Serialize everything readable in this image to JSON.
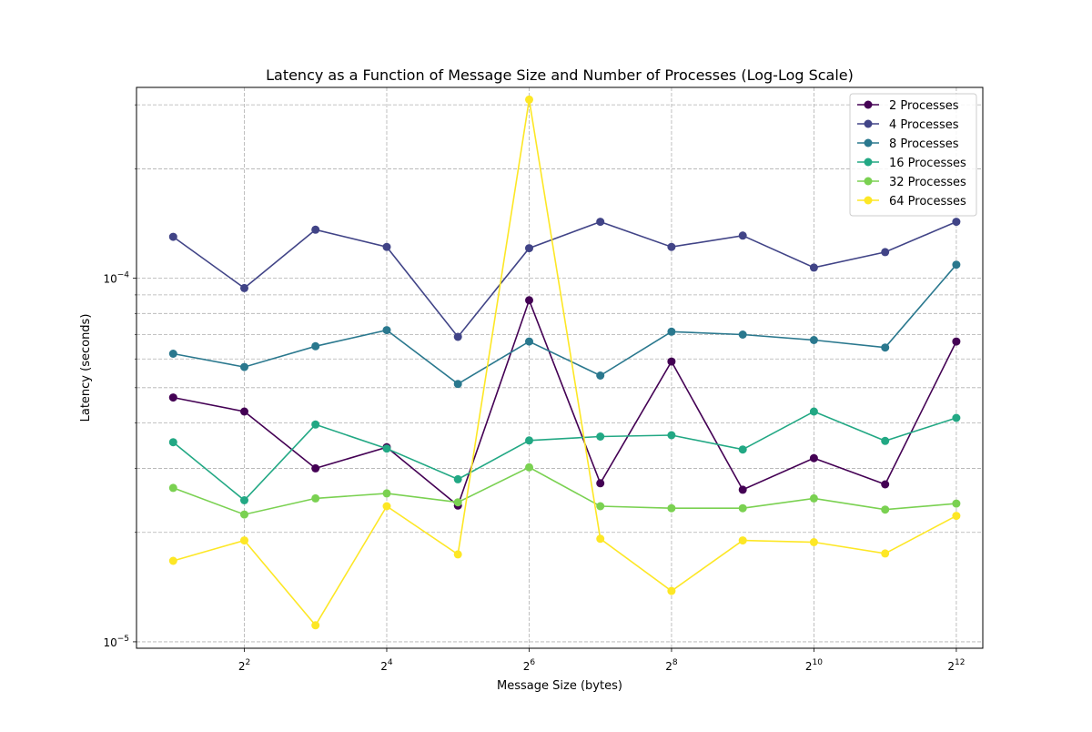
{
  "chart_data": {
    "type": "line",
    "title": "Latency as a Function of Message Size and Number of Processes (Log-Log Scale)",
    "xlabel": "Message Size (bytes)",
    "ylabel": "Latency (seconds)",
    "x_scale": "log2",
    "y_scale": "log10",
    "xlim": [
      1.4,
      5300
    ],
    "ylim": [
      9.6e-06,
      0.000335
    ],
    "grid": true,
    "legend_location": "upper right",
    "marker": "circle",
    "x_ticks": [
      {
        "value": 4,
        "base": "2",
        "exp": "2"
      },
      {
        "value": 16,
        "base": "2",
        "exp": "4"
      },
      {
        "value": 64,
        "base": "2",
        "exp": "6"
      },
      {
        "value": 256,
        "base": "2",
        "exp": "8"
      },
      {
        "value": 1024,
        "base": "2",
        "exp": "10"
      },
      {
        "value": 4096,
        "base": "2",
        "exp": "12"
      }
    ],
    "y_ticks": [
      {
        "value": 1e-05,
        "base": "10",
        "exp": "−5"
      },
      {
        "value": 0.0001,
        "base": "10",
        "exp": "−4"
      }
    ],
    "y_minor_ticks": [
      2e-05,
      3e-05,
      4e-05,
      5e-05,
      6e-05,
      7e-05,
      8e-05,
      9e-05,
      0.0002,
      0.0003
    ],
    "x": [
      2,
      4,
      8,
      16,
      32,
      64,
      128,
      256,
      512,
      1024,
      2048,
      4096
    ],
    "series": [
      {
        "name": "2 Processes",
        "color": "#440154",
        "values": [
          4.7e-05,
          4.3e-05,
          3e-05,
          3.43e-05,
          2.37e-05,
          8.7e-05,
          2.73e-05,
          5.9e-05,
          2.62e-05,
          3.2e-05,
          2.71e-05,
          6.7e-05
        ]
      },
      {
        "name": "4 Processes",
        "color": "#414487",
        "values": [
          0.00013,
          9.4e-05,
          0.000136,
          0.000122,
          6.9e-05,
          0.000121,
          0.000143,
          0.000122,
          0.000131,
          0.000107,
          0.000118,
          0.000143
        ]
      },
      {
        "name": "8 Processes",
        "color": "#2a788e",
        "values": [
          6.2e-05,
          5.7e-05,
          6.5e-05,
          7.2e-05,
          5.12e-05,
          6.7e-05,
          5.4e-05,
          7.13e-05,
          7e-05,
          6.76e-05,
          6.45e-05,
          0.000109
        ]
      },
      {
        "name": "16 Processes",
        "color": "#22a884",
        "values": [
          3.54e-05,
          2.45e-05,
          3.96e-05,
          3.4e-05,
          2.8e-05,
          3.58e-05,
          3.67e-05,
          3.7e-05,
          3.38e-05,
          4.3e-05,
          3.57e-05,
          4.13e-05
        ]
      },
      {
        "name": "32 Processes",
        "color": "#7ad151",
        "values": [
          2.65e-05,
          2.24e-05,
          2.48e-05,
          2.56e-05,
          2.42e-05,
          3.02e-05,
          2.36e-05,
          2.33e-05,
          2.33e-05,
          2.48e-05,
          2.31e-05,
          2.4e-05
        ]
      },
      {
        "name": "64 Processes",
        "color": "#fde725",
        "values": [
          1.67e-05,
          1.9e-05,
          1.11e-05,
          2.36e-05,
          1.74e-05,
          0.00031,
          1.92e-05,
          1.38e-05,
          1.9e-05,
          1.88e-05,
          1.75e-05,
          2.22e-05
        ]
      }
    ]
  }
}
